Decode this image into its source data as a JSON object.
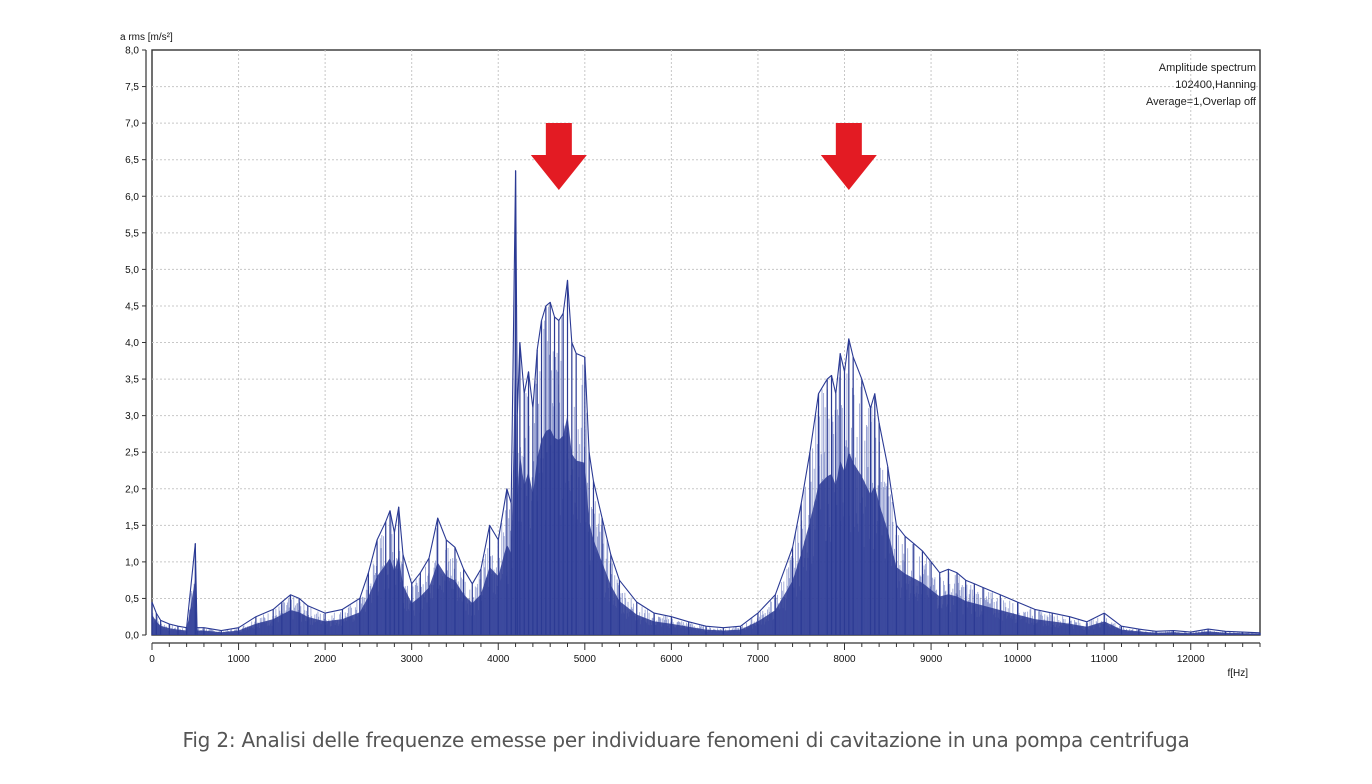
{
  "caption": "Fig 2: Analisi delle frequenze emesse per individuare fenomeni di cavitazione in una pompa centrifuga",
  "chart_data": {
    "type": "area",
    "title": "",
    "xlabel": "f[Hz]",
    "ylabel": "a rms [m/s²]",
    "xlim": [
      0,
      12800
    ],
    "ylim": [
      0,
      8.0
    ],
    "x_ticks": [
      0,
      1000,
      2000,
      3000,
      4000,
      5000,
      6000,
      7000,
      8000,
      9000,
      10000,
      11000,
      12000
    ],
    "y_ticks": [
      0.0,
      0.5,
      1.0,
      1.5,
      2.0,
      2.5,
      3.0,
      3.5,
      4.0,
      4.5,
      5.0,
      5.5,
      6.0,
      6.5,
      7.0,
      7.5,
      8.0
    ],
    "y_tick_labels": [
      "0,0",
      "0,5",
      "1,0",
      "1,5",
      "2,0",
      "2,5",
      "3,0",
      "3,5",
      "4,0",
      "4,5",
      "5,0",
      "5,5",
      "6,0",
      "6,5",
      "7,0",
      "7,5",
      "8,0"
    ],
    "grid": true,
    "legend_lines": [
      "Amplitude spectrum",
      "102400,Hanning",
      "Average=1,Overlap off"
    ],
    "legend_position": "top-right",
    "series": [
      {
        "x": [
          0,
          50,
          100,
          200,
          300,
          400,
          500,
          520,
          600,
          800,
          1000,
          1200,
          1400,
          1500,
          1600,
          1700,
          1800,
          2000,
          2200,
          2400,
          2500,
          2600,
          2700,
          2750,
          2800,
          2850,
          2900,
          3000,
          3100,
          3200,
          3300,
          3400,
          3500,
          3600,
          3700,
          3800,
          3900,
          4000,
          4100,
          4150,
          4200,
          4220,
          4250,
          4300,
          4350,
          4400,
          4450,
          4500,
          4550,
          4600,
          4650,
          4700,
          4750,
          4800,
          4850,
          4900,
          5000,
          5050,
          5100,
          5200,
          5300,
          5400,
          5600,
          5800,
          6000,
          6200,
          6400,
          6600,
          6800,
          7000,
          7200,
          7400,
          7500,
          7600,
          7700,
          7800,
          7850,
          7900,
          7950,
          8000,
          8050,
          8100,
          8200,
          8300,
          8350,
          8400,
          8500,
          8600,
          8700,
          8800,
          8900,
          9000,
          9100,
          9200,
          9300,
          9400,
          9500,
          9600,
          9800,
          10000,
          10200,
          10400,
          10600,
          10800,
          11000,
          11200,
          11400,
          11600,
          11800,
          12000,
          12200,
          12400,
          12600,
          12800
        ],
        "y": [
          0.45,
          0.3,
          0.2,
          0.15,
          0.12,
          0.1,
          1.25,
          0.1,
          0.1,
          0.06,
          0.1,
          0.25,
          0.35,
          0.45,
          0.55,
          0.5,
          0.4,
          0.3,
          0.35,
          0.5,
          0.85,
          1.3,
          1.55,
          1.7,
          1.4,
          1.75,
          1.1,
          0.7,
          0.85,
          1.05,
          1.6,
          1.3,
          1.2,
          0.9,
          0.7,
          0.9,
          1.5,
          1.3,
          2.0,
          1.8,
          6.35,
          3.0,
          4.0,
          3.3,
          3.6,
          3.1,
          3.9,
          4.3,
          4.5,
          4.55,
          4.35,
          4.3,
          4.4,
          4.85,
          4.0,
          3.85,
          3.8,
          2.5,
          2.1,
          1.6,
          1.1,
          0.75,
          0.45,
          0.3,
          0.25,
          0.18,
          0.12,
          0.1,
          0.12,
          0.3,
          0.55,
          1.2,
          1.8,
          2.5,
          3.3,
          3.5,
          3.55,
          3.3,
          3.85,
          3.6,
          4.05,
          3.8,
          3.5,
          3.1,
          3.3,
          2.9,
          2.3,
          1.5,
          1.35,
          1.25,
          1.15,
          1.0,
          0.85,
          0.9,
          0.85,
          0.75,
          0.7,
          0.65,
          0.55,
          0.45,
          0.35,
          0.3,
          0.25,
          0.18,
          0.3,
          0.12,
          0.08,
          0.05,
          0.06,
          0.04,
          0.08,
          0.05,
          0.04,
          0.03
        ]
      }
    ],
    "annotations": [
      {
        "type": "arrow-down",
        "x": 4700,
        "color": "#e31b23"
      },
      {
        "type": "arrow-down",
        "x": 8050,
        "color": "#e31b23"
      }
    ],
    "colors": {
      "series": "#2b3a94",
      "series_light": "#6e7cc2",
      "grid": "#c8c8c8",
      "axis": "#333333",
      "arrow": "#e31b23"
    }
  }
}
